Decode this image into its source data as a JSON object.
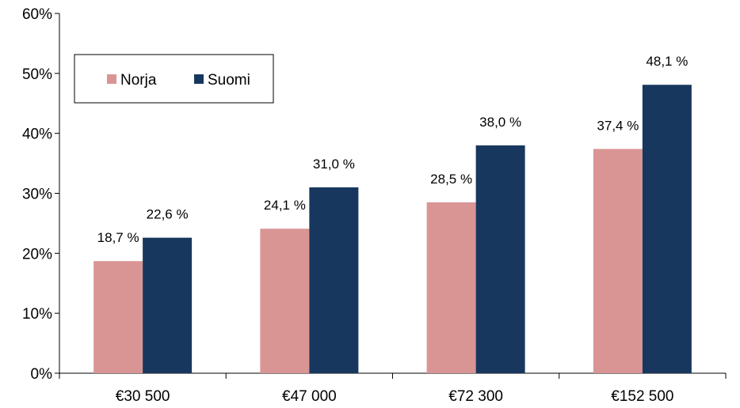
{
  "chart_data": {
    "type": "bar",
    "title": "",
    "xlabel": "",
    "ylabel": "",
    "categories": [
      "€30 500",
      "€47 000",
      "€72 300",
      "€152 500"
    ],
    "series": [
      {
        "name": "Norja",
        "values": [
          18.7,
          24.1,
          28.5,
          37.4
        ],
        "color": "#d99594",
        "labels": [
          "18,7 %",
          "24,1 %",
          "28,5 %",
          "37,4 %"
        ]
      },
      {
        "name": "Suomi",
        "values": [
          22.6,
          31.0,
          38.0,
          48.1
        ],
        "color": "#17375e",
        "labels": [
          "22,6 %",
          "31,0 %",
          "38,0 %",
          "48,1 %"
        ]
      }
    ],
    "ylim": [
      0,
      60
    ],
    "yticks": [
      0,
      10,
      20,
      30,
      40,
      50,
      60
    ],
    "ytick_labels": [
      "0%",
      "10%",
      "20%",
      "30%",
      "40%",
      "50%",
      "60%"
    ],
    "grid": false,
    "legend_position": "top-left"
  }
}
